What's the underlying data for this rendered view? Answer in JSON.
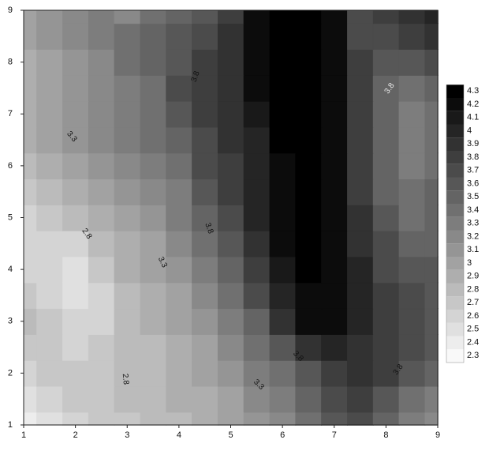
{
  "chart_data": {
    "type": "contour",
    "x": [
      1,
      1.5,
      2,
      2.5,
      3,
      3.5,
      4,
      4.5,
      5,
      5.5,
      6,
      6.5,
      7,
      7.5,
      8,
      8.5,
      9
    ],
    "y": [
      1,
      1.5,
      2,
      2.5,
      3,
      3.5,
      4,
      4.5,
      5,
      5.5,
      6,
      6.5,
      7,
      7.5,
      8,
      8.5,
      9
    ],
    "z": [
      [
        2.4,
        2.5,
        2.6,
        2.7,
        2.7,
        2.8,
        2.8,
        2.9,
        3.0,
        3.1,
        3.2,
        3.4,
        3.6,
        3.7,
        3.5,
        3.3,
        3.2
      ],
      [
        2.5,
        2.6,
        2.7,
        2.7,
        2.8,
        2.8,
        2.9,
        2.9,
        3.0,
        3.2,
        3.3,
        3.5,
        3.7,
        3.8,
        3.6,
        3.4,
        3.3
      ],
      [
        2.6,
        2.7,
        2.7,
        2.7,
        2.8,
        2.8,
        2.9,
        3.0,
        3.1,
        3.3,
        3.4,
        3.6,
        3.8,
        3.9,
        3.8,
        3.6,
        3.5
      ],
      [
        2.7,
        2.7,
        2.6,
        2.7,
        2.8,
        2.8,
        2.9,
        3.0,
        3.2,
        3.4,
        3.6,
        3.9,
        4.0,
        3.9,
        3.8,
        3.7,
        3.6
      ],
      [
        2.8,
        2.7,
        2.6,
        2.6,
        2.8,
        2.9,
        3.0,
        3.1,
        3.3,
        3.5,
        3.9,
        4.2,
        4.2,
        4.0,
        3.8,
        3.7,
        3.6
      ],
      [
        2.7,
        2.6,
        2.5,
        2.6,
        2.8,
        2.9,
        3.0,
        3.2,
        3.4,
        3.7,
        4.0,
        4.2,
        4.2,
        4.0,
        3.8,
        3.7,
        3.6
      ],
      [
        2.6,
        2.6,
        2.5,
        2.7,
        2.9,
        3.0,
        3.1,
        3.3,
        3.5,
        3.8,
        4.1,
        4.3,
        4.2,
        4.0,
        3.7,
        3.6,
        3.6
      ],
      [
        2.6,
        2.6,
        2.6,
        2.8,
        2.9,
        3.0,
        3.2,
        3.4,
        3.6,
        3.9,
        4.2,
        4.3,
        4.2,
        3.9,
        3.7,
        3.5,
        3.5
      ],
      [
        2.6,
        2.7,
        2.8,
        2.9,
        3.0,
        3.1,
        3.3,
        3.5,
        3.7,
        4.0,
        4.2,
        4.3,
        4.2,
        3.9,
        3.6,
        3.4,
        3.5
      ],
      [
        2.7,
        2.8,
        2.9,
        3.0,
        3.1,
        3.2,
        3.3,
        3.6,
        3.8,
        4.0,
        4.2,
        4.3,
        4.2,
        3.8,
        3.5,
        3.4,
        3.5
      ],
      [
        2.8,
        2.9,
        3.0,
        3.1,
        3.2,
        3.3,
        3.4,
        3.7,
        3.8,
        4.0,
        4.2,
        4.3,
        4.2,
        3.8,
        3.5,
        3.3,
        3.4
      ],
      [
        2.9,
        3.0,
        3.1,
        3.2,
        3.3,
        3.4,
        3.5,
        3.7,
        3.9,
        4.0,
        4.3,
        4.3,
        4.2,
        3.8,
        3.5,
        3.3,
        3.4
      ],
      [
        2.9,
        3.0,
        3.1,
        3.2,
        3.3,
        3.4,
        3.6,
        3.8,
        3.9,
        4.1,
        4.3,
        4.3,
        4.2,
        3.8,
        3.5,
        3.3,
        3.4
      ],
      [
        2.9,
        3.0,
        3.1,
        3.2,
        3.3,
        3.4,
        3.7,
        3.8,
        3.9,
        4.2,
        4.3,
        4.3,
        4.2,
        3.8,
        3.5,
        3.4,
        3.5
      ],
      [
        2.9,
        3.0,
        3.1,
        3.2,
        3.4,
        3.5,
        3.6,
        3.8,
        3.9,
        4.2,
        4.3,
        4.3,
        4.2,
        3.8,
        3.6,
        3.6,
        3.7
      ],
      [
        3.0,
        3.1,
        3.2,
        3.3,
        3.4,
        3.5,
        3.6,
        3.7,
        3.9,
        4.2,
        4.3,
        4.3,
        4.2,
        3.7,
        3.7,
        3.8,
        3.9
      ],
      [
        3.0,
        3.1,
        3.2,
        3.3,
        3.2,
        3.4,
        3.5,
        3.6,
        3.8,
        4.2,
        4.3,
        4.3,
        4.2,
        3.7,
        3.8,
        3.9,
        4.0
      ]
    ],
    "xlim": [
      1,
      9
    ],
    "ylim": [
      1,
      9
    ],
    "xticks": [
      1,
      2,
      3,
      4,
      5,
      6,
      7,
      8,
      9
    ],
    "yticks": [
      1,
      2,
      3,
      4,
      5,
      6,
      7,
      8,
      9
    ],
    "levels": [
      2.3,
      2.4,
      2.5,
      2.6,
      2.7,
      2.8,
      2.9,
      3,
      3.1,
      3.2,
      3.3,
      3.4,
      3.5,
      3.6,
      3.7,
      3.8,
      3.9,
      4,
      4.1,
      4.2,
      4.3
    ],
    "color_low": "#f9f9f9",
    "color_high": "#000000",
    "contour_labels": [
      3.8,
      3.8,
      3.3,
      3.8,
      2.8,
      3.3,
      2.8,
      3.8,
      3.3,
      3.8
    ]
  }
}
